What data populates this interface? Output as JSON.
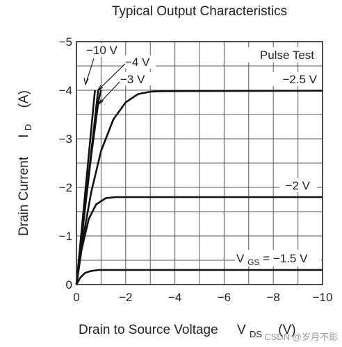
{
  "chart_data": {
    "type": "line",
    "title": "Typical Output Characteristics",
    "xlabel": "Drain to Source Voltage",
    "xlabel_symbol": "V",
    "xlabel_sub": "DS",
    "xlabel_unit": "(V)",
    "ylabel": "Drain Current",
    "ylabel_symbol": "I",
    "ylabel_sub": "D",
    "ylabel_unit": "(A)",
    "xlim": [
      0,
      -10
    ],
    "ylim": [
      0,
      -5
    ],
    "x_ticks": [
      0,
      -2,
      -4,
      -6,
      -8,
      -10
    ],
    "x_tick_labels": [
      "0",
      "−2",
      "−4",
      "−6",
      "−8",
      "−10"
    ],
    "y_ticks": [
      0,
      -1,
      -2,
      -3,
      -4,
      -5
    ],
    "y_tick_labels": [
      "0",
      "−1",
      "−2",
      "−3",
      "−4",
      "−5"
    ],
    "grid": true,
    "annotation": "Pulse Test",
    "series": [
      {
        "name": "−10 V",
        "x": [
          0,
          -0.75
        ],
        "y": [
          0,
          -4.0
        ]
      },
      {
        "name": "−4 V",
        "x": [
          0,
          -0.88
        ],
        "y": [
          0,
          -4.0
        ]
      },
      {
        "name": "−3 V",
        "x": [
          0,
          -0.3,
          -0.6,
          -0.9,
          -1.0
        ],
        "y": [
          0,
          -1.35,
          -2.65,
          -3.8,
          -4.0
        ]
      },
      {
        "name": "−2.5 V",
        "x": [
          0,
          -0.3,
          -0.6,
          -1.0,
          -1.5,
          -2.0,
          -2.5,
          -3.0,
          -3.5,
          -10
        ],
        "y": [
          0,
          -1.05,
          -1.9,
          -2.75,
          -3.4,
          -3.75,
          -3.92,
          -3.97,
          -3.98,
          -3.99
        ]
      },
      {
        "name": "−2 V",
        "x": [
          0,
          -0.2,
          -0.5,
          -0.8,
          -1.2,
          -1.6,
          -2.0,
          -10
        ],
        "y": [
          0,
          -0.7,
          -1.35,
          -1.65,
          -1.78,
          -1.8,
          -1.8,
          -1.8
        ]
      },
      {
        "name": "−1.5 V",
        "x": [
          0,
          -0.15,
          -0.35,
          -0.6,
          -0.9,
          -1.2,
          -10
        ],
        "y": [
          0,
          -0.14,
          -0.24,
          -0.28,
          -0.3,
          -0.3,
          -0.3
        ]
      }
    ],
    "labels": {
      "neg10": "−10 V",
      "neg4": "−4 V",
      "neg3": "−3 V",
      "neg25": "−2.5 V",
      "neg2": "−2 V",
      "vgs_symbol": "V",
      "vgs_sub": "GS",
      "vgs_value": " = −1.5 V"
    }
  },
  "watermark": "CSDN @岁月不影"
}
